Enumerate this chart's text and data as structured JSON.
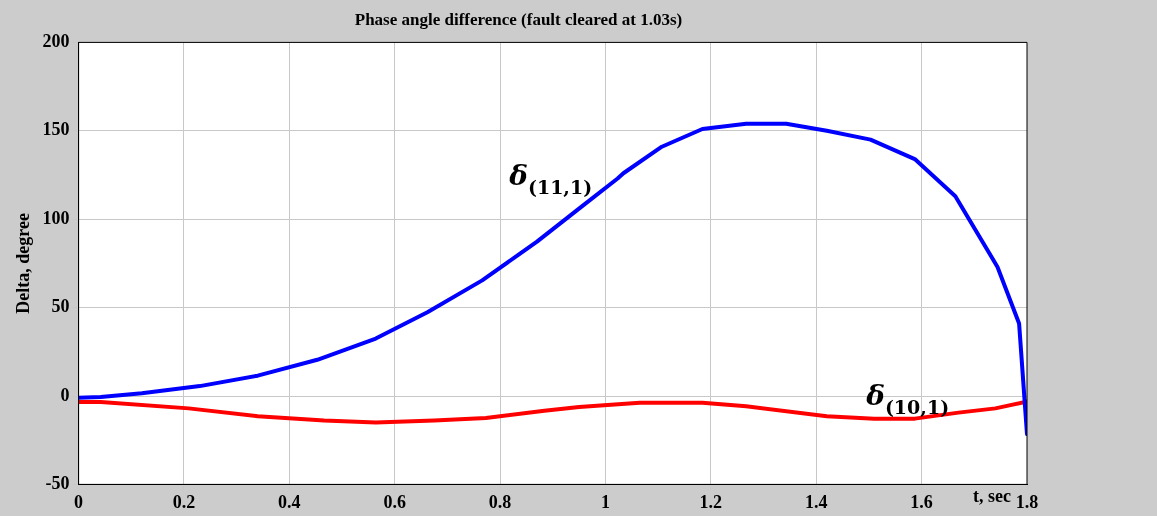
{
  "chart_data": {
    "type": "line",
    "title": "Phase angle difference (fault cleared at 1.03s)",
    "xlabel": "t, sec",
    "ylabel": "Delta, degree",
    "xlim": [
      0,
      1.8
    ],
    "xticks": [
      0,
      0.2,
      0.4,
      0.6,
      0.8,
      1,
      1.2,
      1.4,
      1.6,
      1.8
    ],
    "ylim": [
      -50,
      200
    ],
    "yticks": [
      -50,
      0,
      50,
      100,
      150,
      200
    ],
    "grid": true,
    "legend": false,
    "marker": "none",
    "line_style": "solid",
    "series": [
      {
        "name": "δ$_{(11,1)}$",
        "color": "#0000ff",
        "x": [
          0,
          0.042,
          0.12,
          0.23,
          0.34,
          0.453,
          0.564,
          0.662,
          0.766,
          0.87,
          0.954,
          1.023,
          1.034,
          1.107,
          1.184,
          1.267,
          1.343,
          1.42,
          1.503,
          1.587,
          1.664,
          1.744,
          1.785,
          1.8
        ],
        "values": [
          -1,
          -0.6,
          1.5,
          5.6,
          11.5,
          20.5,
          32.5,
          47.4,
          65.4,
          87.3,
          107,
          123,
          126,
          141,
          151,
          154,
          154,
          150,
          145,
          134,
          113,
          73,
          41,
          -21.5
        ]
      },
      {
        "name": "δ$_{(10,1)}$",
        "color": "#ff0000",
        "x": [
          0,
          0.042,
          0.209,
          0.34,
          0.466,
          0.564,
          0.675,
          0.773,
          0.884,
          0.95,
          1.065,
          1.184,
          1.267,
          1.42,
          1.51,
          1.587,
          1.67,
          1.74,
          1.796,
          1.8
        ],
        "values": [
          -3.4,
          -3.4,
          -7,
          -11.4,
          -13.8,
          -15,
          -13.8,
          -12.4,
          -8.4,
          -6.2,
          -3.8,
          -3.8,
          -5.8,
          -11.4,
          -12.8,
          -12.8,
          -9.4,
          -7,
          -3.4,
          -3
        ]
      }
    ]
  }
}
